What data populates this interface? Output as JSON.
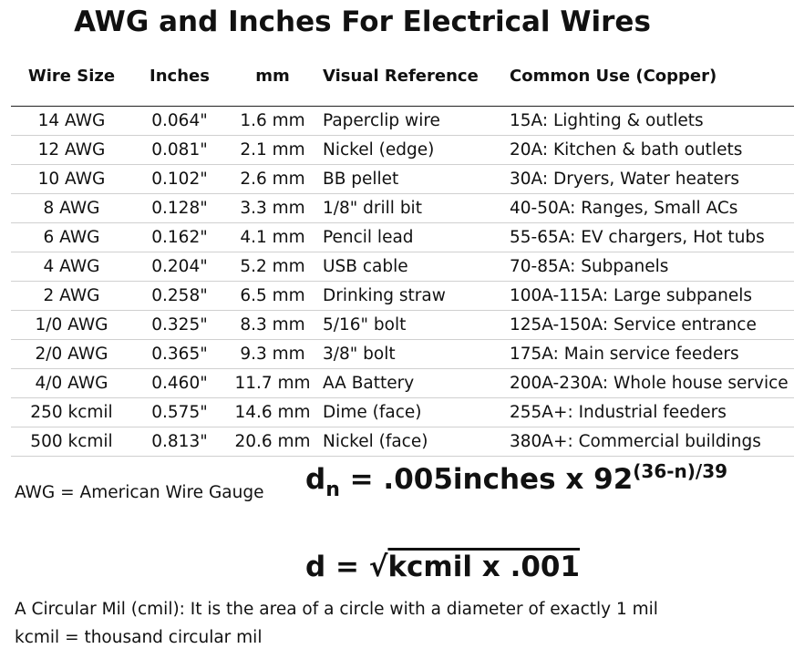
{
  "header": {
    "title": "AWG and Inches For Electrical Wires"
  },
  "table": {
    "headers": [
      "Wire Size",
      "Inches",
      "mm",
      "Visual Reference",
      "Common Use (Copper)"
    ],
    "rows": [
      [
        "14 AWG",
        "0.064\"",
        "1.6 mm",
        "Paperclip wire",
        "15A: Lighting & outlets"
      ],
      [
        "12 AWG",
        "0.081\"",
        "2.1 mm",
        "Nickel (edge)",
        "20A: Kitchen & bath outlets"
      ],
      [
        "10 AWG",
        "0.102\"",
        "2.6 mm",
        "BB pellet",
        "30A: Dryers, Water heaters"
      ],
      [
        "8 AWG",
        "0.128\"",
        "3.3 mm",
        "1/8\" drill bit",
        "40-50A: Ranges, Small ACs"
      ],
      [
        "6 AWG",
        "0.162\"",
        "4.1 mm",
        "Pencil lead",
        "55-65A: EV chargers, Hot tubs"
      ],
      [
        "4 AWG",
        "0.204\"",
        "5.2 mm",
        "USB cable",
        "70-85A: Subpanels"
      ],
      [
        "2 AWG",
        "0.258\"",
        "6.5 mm",
        "Drinking straw",
        "100A-115A: Large subpanels"
      ],
      [
        "1/0 AWG",
        "0.325\"",
        "8.3 mm",
        "5/16\" bolt",
        "125A-150A: Service entrance"
      ],
      [
        "2/0 AWG",
        "0.365\"",
        "9.3 mm",
        "3/8\" bolt",
        "175A: Main service feeders"
      ],
      [
        "4/0 AWG",
        "0.460\"",
        "11.7 mm",
        "AA Battery",
        "200A-230A: Whole house service"
      ],
      [
        "250 kcmil",
        "0.575\"",
        "14.6 mm",
        "Dime (face)",
        "255A+: Industrial feeders"
      ],
      [
        "500 kcmil",
        "0.813\"",
        "20.6 mm",
        "Nickel (face)",
        "380A+: Commercial buildings"
      ]
    ]
  },
  "notes": {
    "awg": "AWG = American Wire Gauge",
    "cmil": "A Circular Mil (cmil):  It is the area of a circle with a diameter of exactly 1 mil",
    "kcmil": "kcmil = thousand circular mil"
  },
  "formula1": {
    "base": "d",
    "subscript": "n",
    "body": " = .005inches x 92",
    "exponent": "(36-n)/39"
  },
  "formula2": {
    "left": "d = ",
    "root": "√",
    "body": "kcmil x .001"
  }
}
